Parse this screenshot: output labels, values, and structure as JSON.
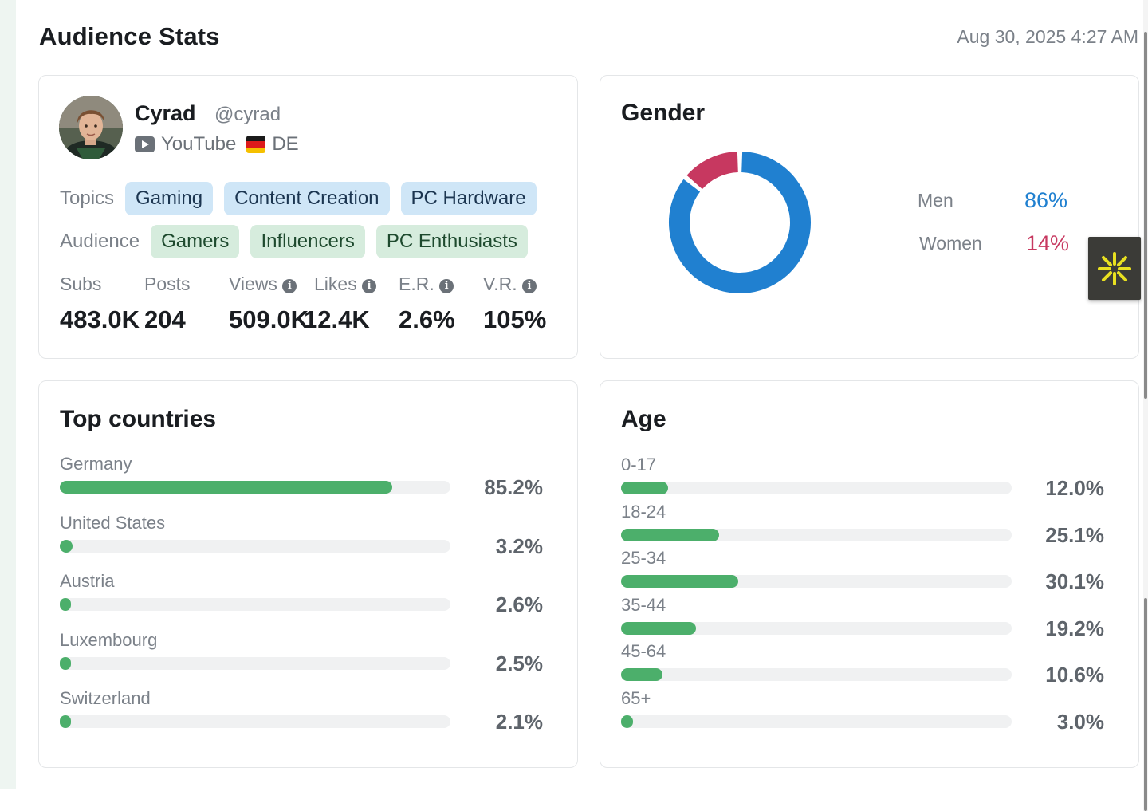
{
  "header": {
    "title": "Audience Stats",
    "timestamp": "Aug 30, 2025 4:27 AM"
  },
  "profile": {
    "name": "Cyrad",
    "handle": "@cyrad",
    "platform": "YouTube",
    "country": "DE",
    "topics_label": "Topics",
    "topics": [
      "Gaming",
      "Content Creation",
      "PC Hardware"
    ],
    "audience_label": "Audience",
    "audience": [
      "Gamers",
      "Influencers",
      "PC Enthusiasts"
    ],
    "stats": [
      {
        "label": "Subs",
        "value": "483.0K"
      },
      {
        "label": "Posts",
        "value": "204"
      },
      {
        "label": "Views",
        "value": "509.0K"
      },
      {
        "label": "Likes",
        "value": "12.4K"
      },
      {
        "label": "E.R.",
        "value": "2.6%"
      },
      {
        "label": "V.R.",
        "value": "105%"
      }
    ],
    "info_glyph": "i"
  },
  "gender": {
    "title": "Gender",
    "men_label": "Men",
    "men_value": "86%",
    "women_label": "Women",
    "women_value": "14%",
    "men_fraction": 0.86,
    "women_fraction": 0.14,
    "men_color": "#2080d0",
    "women_color": "#c73860"
  },
  "countries": {
    "title": "Top countries",
    "items": [
      {
        "label": "Germany",
        "value": "85.2%",
        "fraction": 0.852
      },
      {
        "label": "United States",
        "value": "3.2%",
        "fraction": 0.032
      },
      {
        "label": "Austria",
        "value": "2.6%",
        "fraction": 0.026
      },
      {
        "label": "Luxembourg",
        "value": "2.5%",
        "fraction": 0.025
      },
      {
        "label": "Switzerland",
        "value": "2.1%",
        "fraction": 0.021
      }
    ]
  },
  "age": {
    "title": "Age",
    "items": [
      {
        "label": "0-17",
        "value": "12.0%",
        "fraction": 0.12
      },
      {
        "label": "18-24",
        "value": "25.1%",
        "fraction": 0.251
      },
      {
        "label": "25-34",
        "value": "30.1%",
        "fraction": 0.301
      },
      {
        "label": "35-44",
        "value": "19.2%",
        "fraction": 0.192
      },
      {
        "label": "45-64",
        "value": "10.6%",
        "fraction": 0.106
      },
      {
        "label": "65+",
        "value": "3.0%",
        "fraction": 0.03
      }
    ]
  },
  "colors": {
    "bar_fill": "#4caf6b",
    "bar_track": "#f0f1f2",
    "topic_tag": "#cfe6f7",
    "audience_tag": "#d6ecdd",
    "floater_icon": "#e8e020"
  },
  "icons": {
    "platform": "youtube-icon",
    "flag": "germany-flag-icon",
    "floater": "asterisk-burst-icon"
  }
}
